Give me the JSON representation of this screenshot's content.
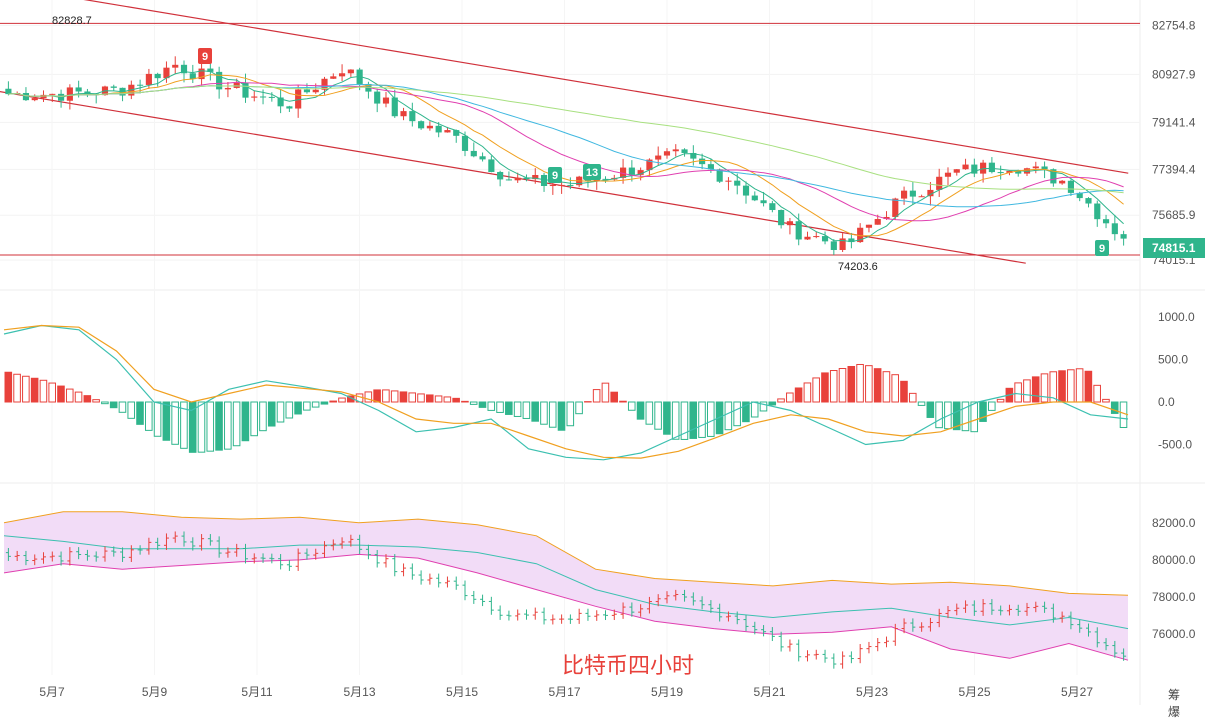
{
  "caption": "比特币四小时",
  "watermark": "筹 爆",
  "colors": {
    "up": "#e8413b",
    "down": "#2fb58c",
    "price_bg": "#2fb58c",
    "boll_fill": "#f2dcf7"
  },
  "chart_data": [
    {
      "type": "candlestick",
      "title": "",
      "x_dates": [
        "5月7",
        "5月9",
        "5月11",
        "5月13",
        "5月15",
        "5月17",
        "5月19",
        "5月21",
        "5月23",
        "5月25",
        "5月27"
      ],
      "y_ticks": [
        "82754.8",
        "80927.9",
        "79141.4",
        "77394.4",
        "75685.9",
        "74015.1"
      ],
      "ylim": [
        73200,
        83400
      ],
      "current_price": "74815.1",
      "annotations": {
        "high_label": "82828.7",
        "low_label": "74203.6"
      },
      "badges": [
        "9",
        "9",
        "13",
        "9"
      ],
      "horizontal_lines": [
        82828.7,
        74203.6
      ],
      "channel_lines": [
        {
          "from": [
            "5月5",
            84550
          ],
          "to": [
            "5月28",
            77250
          ]
        },
        {
          "from": [
            "5月5",
            80600
          ],
          "to": [
            "5月26",
            73900
          ]
        }
      ],
      "ma_lines": [
        "#2fb58c",
        "#f0a020",
        "#e040b0",
        "#40b8e0",
        "#a8e080"
      ],
      "price_path": [
        [
          81300,
          82828.7,
          80600,
          80200,
          "5月6"
        ],
        [
          80400,
          81500,
          79800,
          80200,
          "5月8"
        ],
        [
          80100,
          80700,
          79400,
          80350,
          "5月10"
        ],
        [
          80500,
          82300,
          80200,
          81300,
          "5月11"
        ],
        [
          81400,
          81900,
          80200,
          80400,
          "5月13"
        ],
        [
          80500,
          81500,
          79000,
          79800,
          "5月14"
        ],
        [
          79900,
          81700,
          79400,
          81200,
          "5月15"
        ],
        [
          80900,
          81000,
          79100,
          79400,
          "5月16"
        ],
        [
          79300,
          79500,
          78200,
          78600,
          "5月17"
        ],
        [
          78600,
          78900,
          76600,
          77000,
          "5月18"
        ],
        [
          77100,
          77600,
          76300,
          76800,
          "5月19"
        ],
        [
          76900,
          77600,
          76400,
          77300,
          "5月20"
        ],
        [
          77400,
          78300,
          77000,
          77900,
          "5月21"
        ],
        [
          77700,
          78100,
          76800,
          77000,
          "5月22"
        ],
        [
          77100,
          77400,
          74800,
          75200,
          "5月23"
        ],
        [
          75300,
          75600,
          74203.6,
          74500,
          "5月23b"
        ],
        [
          74600,
          77000,
          74400,
          76300,
          "5月24"
        ],
        [
          76400,
          77700,
          75900,
          77300,
          "5月25"
        ],
        [
          77300,
          78300,
          76900,
          77600,
          "5月26"
        ],
        [
          77600,
          78100,
          76600,
          76900,
          "5月27"
        ],
        [
          76900,
          77000,
          74600,
          74815.1,
          "5月28"
        ]
      ]
    },
    {
      "type": "macd",
      "y_ticks": [
        "1000.0",
        "500.0",
        "0.0",
        "-500.0"
      ],
      "ylim": [
        -800,
        1200
      ],
      "dif_color": "#3cc0b0",
      "dea_color": "#f0a020",
      "dif": [
        800,
        900,
        850,
        500,
        0,
        -100,
        150,
        250,
        180,
        100,
        -100,
        -350,
        -300,
        -200,
        -550,
        -650,
        -680,
        -600,
        -400,
        -200,
        0,
        -100,
        -300,
        -500,
        -450,
        -200,
        0,
        100,
        50,
        -150,
        -200
      ],
      "dea": [
        850,
        900,
        880,
        600,
        150,
        0,
        100,
        200,
        160,
        120,
        0,
        -200,
        -250,
        -250,
        -400,
        -550,
        -650,
        -660,
        -580,
        -420,
        -250,
        -150,
        -200,
        -350,
        -400,
        -350,
        -200,
        -50,
        0,
        0,
        -150
      ],
      "histogram": [
        350,
        250,
        100,
        -100,
        -400,
        -600,
        -550,
        -300,
        -100,
        50,
        150,
        100,
        50,
        -100,
        -200,
        -350,
        250,
        -200,
        -450,
        -400,
        -200,
        100,
        350,
        450,
        300,
        -300,
        -350,
        200,
        350,
        400,
        -300
      ]
    },
    {
      "type": "bollinger",
      "y_ticks": [
        "82000.0",
        "80000.0",
        "78000.0",
        "76000.0"
      ],
      "ylim": [
        73800,
        83500
      ],
      "upper": [
        82000,
        82600,
        82600,
        82300,
        82200,
        82300,
        82000,
        82200,
        81900,
        81300,
        79500,
        79000,
        78800,
        78600,
        78900,
        78700,
        78800,
        78600,
        78200,
        78100
      ],
      "middle": [
        81300,
        81000,
        80600,
        80600,
        80600,
        80800,
        80800,
        80700,
        80400,
        79800,
        78400,
        77600,
        77200,
        76900,
        77200,
        77400,
        76900,
        76500,
        76900,
        76300
      ],
      "lower": [
        79300,
        79800,
        79500,
        79700,
        79900,
        80000,
        80300,
        80100,
        79300,
        78400,
        77500,
        76700,
        76300,
        76000,
        76100,
        76400,
        75200,
        74700,
        75500,
        74600
      ]
    }
  ]
}
